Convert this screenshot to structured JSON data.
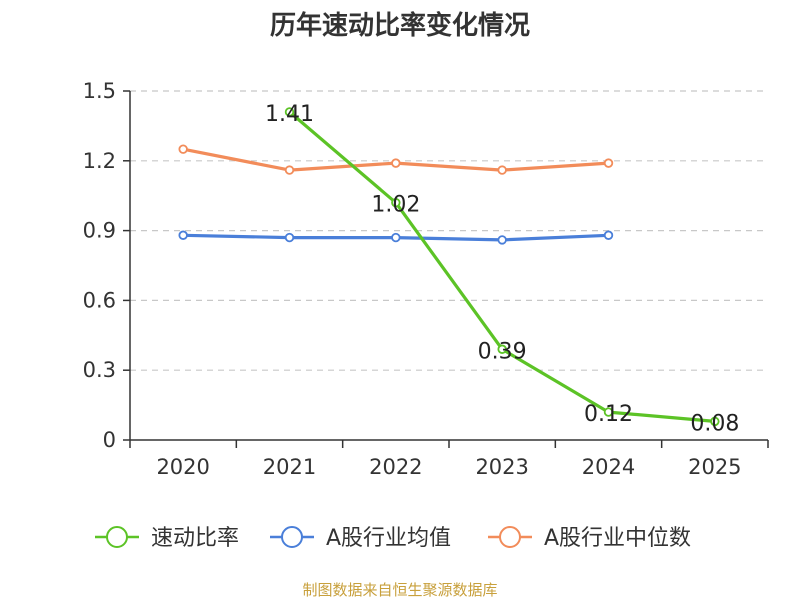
{
  "chart_data": {
    "type": "line",
    "title": "历年速动比率变化情况",
    "categories": [
      "2020",
      "2021",
      "2022",
      "2023",
      "2024",
      "2025"
    ],
    "ylim": [
      0,
      1.5
    ],
    "yticks": [
      0,
      0.3,
      0.6,
      0.9,
      1.2,
      1.5
    ],
    "ytick_labels": [
      "0",
      "0.3",
      "0.6",
      "0.9",
      "1.2",
      "1.5"
    ],
    "grid": true,
    "legend_position": "bottom",
    "series": [
      {
        "name": "速动比率",
        "color": "#5cc326",
        "values": [
          null,
          1.41,
          1.02,
          0.39,
          0.12,
          0.08
        ],
        "labels": [
          "",
          "1.41",
          "1.02",
          "0.39",
          "0.12",
          "0.08"
        ]
      },
      {
        "name": "A股行业均值",
        "color": "#4a7fd9",
        "values": [
          0.88,
          0.87,
          0.87,
          0.86,
          0.88,
          null
        ]
      },
      {
        "name": "A股行业中位数",
        "color": "#f28c5a",
        "values": [
          1.25,
          1.16,
          1.19,
          1.16,
          1.19,
          null
        ]
      }
    ],
    "source": "制图数据来自恒生聚源数据库"
  }
}
